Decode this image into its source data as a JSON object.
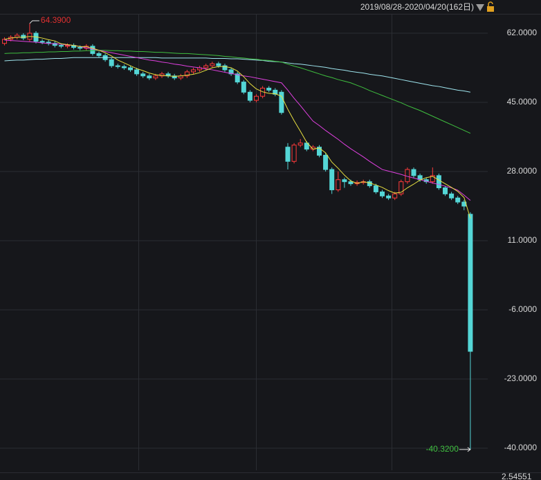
{
  "chart_data": {
    "type": "candlestick",
    "title": "2019/08/28-2020/04/20(162日)",
    "footer_value": "2.54551",
    "high_label": "64.3900",
    "low_label": "-40.3200",
    "up_color": "#ff3b3b",
    "down_color": "#54d6d6",
    "ylim": [
      -45.44,
      66.76
    ],
    "yticks": [
      {
        "value": 62,
        "label": "62.0000"
      },
      {
        "value": 45,
        "label": "45.0000"
      },
      {
        "value": 28,
        "label": "28.0000"
      },
      {
        "value": 11,
        "label": "11.0000"
      },
      {
        "value": -6,
        "label": "-6.0000"
      },
      {
        "value": -23,
        "label": "-23.0000"
      },
      {
        "value": -40,
        "label": "-40.0000"
      }
    ],
    "grid": true,
    "open": [
      59.5,
      60.5,
      61,
      61.5,
      60.5,
      62,
      60,
      59.8,
      59.5,
      59,
      58.8,
      59,
      58.5,
      58.3,
      58.8,
      57,
      56.5,
      55.5,
      54,
      53.8,
      53.5,
      53,
      52,
      51.5,
      51,
      51.5,
      52,
      51.5,
      51,
      51.5,
      52.5,
      53,
      53.5,
      54,
      54.5,
      54,
      53,
      52,
      50,
      47.5,
      45.5,
      46.5,
      48.5,
      48,
      47.5,
      34,
      30.5,
      34.5,
      35,
      33.5,
      34,
      32,
      28.5,
      23.5,
      26,
      25.5,
      25,
      25.3,
      25.5,
      24.5,
      23,
      22,
      21.5,
      22.5,
      25.5,
      28.5,
      27,
      26,
      25.5,
      27,
      24,
      22.5,
      21.5,
      20.5,
      17.5
    ],
    "high": [
      61,
      61.5,
      62,
      62,
      64.39,
      62.5,
      60.5,
      60.3,
      60,
      59.5,
      59.5,
      59.5,
      59,
      59.3,
      59.3,
      57.5,
      57,
      56,
      54.5,
      54.3,
      54,
      53.5,
      52.5,
      52,
      52,
      52.5,
      52.5,
      52,
      52,
      53,
      53.5,
      54,
      54.5,
      55,
      55,
      54.5,
      53.5,
      52.5,
      50.5,
      48,
      47,
      49,
      49,
      48.5,
      48,
      35,
      35,
      36,
      35.5,
      34.5,
      34.5,
      32.5,
      29,
      28,
      26.5,
      26,
      25.8,
      26,
      26,
      25,
      23.5,
      22.5,
      23,
      26,
      29,
      29,
      27.5,
      26.5,
      29,
      27.5,
      24.5,
      23,
      22,
      21,
      18
    ],
    "low": [
      59,
      60,
      60.5,
      60.3,
      60,
      59.5,
      59.3,
      59,
      58.5,
      58.3,
      58.3,
      58,
      57.8,
      57.8,
      56.5,
      56,
      55,
      53.5,
      53.3,
      53,
      52.5,
      51.5,
      51,
      50.5,
      50.5,
      51,
      51,
      50.5,
      50.5,
      51,
      52,
      52.5,
      53,
      53.5,
      53.5,
      52.5,
      51.5,
      49.5,
      47,
      45,
      45,
      46,
      47.5,
      46.5,
      42,
      28.5,
      30,
      34,
      33,
      33,
      31.5,
      28,
      22.5,
      23,
      24,
      24.5,
      24.5,
      24.8,
      24,
      22.5,
      21.5,
      21,
      21,
      22,
      25,
      26.5,
      25.5,
      25,
      25,
      23.5,
      22,
      21,
      20,
      18.5,
      -40.32
    ],
    "close": [
      60.5,
      61,
      61.5,
      60.8,
      62,
      60,
      59.8,
      59.5,
      59,
      58.8,
      59,
      58.5,
      58.3,
      58.8,
      57,
      56.5,
      55.5,
      54,
      53.8,
      53.5,
      53,
      52,
      51.5,
      51,
      51.5,
      52,
      51.5,
      51,
      51.5,
      52.5,
      53,
      53.5,
      54,
      54.5,
      54,
      53,
      52,
      50,
      47.5,
      45.5,
      46.5,
      48.5,
      48,
      47,
      42.5,
      30.5,
      34.5,
      35,
      33.5,
      34,
      32,
      28.5,
      23.5,
      26,
      25.5,
      25,
      25.3,
      25.5,
      24.5,
      23,
      22,
      21.5,
      22.5,
      25.5,
      28.5,
      27,
      26,
      25.5,
      27,
      24,
      22.5,
      21.5,
      20.5,
      19.5,
      -16.2
    ],
    "lines": [
      {
        "color": "#9fe6ef",
        "values": [
          55.2,
          55.3,
          55.4,
          55.4,
          55.5,
          55.6,
          55.6,
          55.7,
          55.8,
          55.8,
          55.9,
          56,
          56,
          56,
          56,
          56,
          56,
          56,
          56,
          56,
          56,
          56,
          56,
          56,
          56,
          55.9,
          55.9,
          55.9,
          55.9,
          55.9,
          55.9,
          55.9,
          55.9,
          55.8,
          55.8,
          55.8,
          55.7,
          55.7,
          55.6,
          55.5,
          55.4,
          55.3,
          55.1,
          55,
          54.9,
          54.7,
          54.5,
          54.4,
          54.2,
          54,
          53.8,
          53.6,
          53.3,
          53.1,
          52.9,
          52.6,
          52.4,
          52.2,
          51.9,
          51.7,
          51.5,
          51.2,
          50.9,
          50.6,
          50.3,
          50,
          49.7,
          49.4,
          49.1,
          48.9,
          48.6,
          48.3,
          48,
          47.8,
          47.5
        ]
      },
      {
        "color": "#3fbf3f",
        "values": [
          57,
          57.1,
          57.1,
          57.2,
          57.2,
          57.3,
          57.3,
          57.4,
          57.4,
          57.5,
          57.5,
          57.6,
          57.6,
          57.7,
          57.7,
          57.8,
          57.8,
          57.7,
          57.7,
          57.6,
          57.6,
          57.5,
          57.5,
          57.4,
          57.3,
          57.3,
          57.2,
          57.1,
          57,
          57,
          56.9,
          56.8,
          56.7,
          56.6,
          56.5,
          56.3,
          56.2,
          56,
          55.9,
          55.7,
          55.6,
          55.4,
          55.3,
          55.1,
          54.9,
          54.4,
          53.9,
          53.5,
          53,
          52.5,
          52,
          51.5,
          51.1,
          50.6,
          50.2,
          49.8,
          49.2,
          48.6,
          47.9,
          47.3,
          46.7,
          46.1,
          45.5,
          44.9,
          44.2,
          43.6,
          43,
          42.3,
          41.6,
          40.9,
          40.2,
          39.5,
          38.8,
          38.1,
          37.4
        ]
      },
      {
        "color": "#e040e0",
        "values": [
          60.3,
          60.2,
          60.1,
          60,
          59.9,
          59.8,
          59.6,
          59.5,
          59.4,
          59.3,
          59.1,
          59,
          58.7,
          58.4,
          58.1,
          57.8,
          57.5,
          57.2,
          56.9,
          56.6,
          56.3,
          56,
          55.7,
          55.4,
          55.2,
          54.9,
          54.7,
          54.4,
          54.2,
          53.9,
          53.7,
          53.5,
          53.2,
          53,
          52.7,
          52.4,
          52.1,
          51.8,
          51.5,
          51.3,
          51,
          50.7,
          50.4,
          50.1,
          49.8,
          48,
          46,
          44.2,
          42.3,
          40.4,
          39.3,
          38.1,
          37,
          35.9,
          34.7,
          33.6,
          32.6,
          31.6,
          30.5,
          29.5,
          28.5,
          28.1,
          27.7,
          27.3,
          26.8,
          26.4,
          26,
          25.6,
          25.2,
          24.8,
          24.4,
          24,
          23.4,
          22.2,
          20.9
        ]
      },
      {
        "color": "#e8e040",
        "values": [
          60.5,
          60.8,
          61,
          61,
          61.2,
          61.1,
          60.8,
          60.4,
          60.1,
          59.4,
          59.2,
          59,
          58.7,
          58.7,
          58.3,
          57.8,
          57.2,
          56.4,
          55.4,
          54.7,
          54,
          53.3,
          52.8,
          52.2,
          51.8,
          51.6,
          51.5,
          51.4,
          51.5,
          51.7,
          51.9,
          52.3,
          52.9,
          53.5,
          53.8,
          53.8,
          53.5,
          52.7,
          51.3,
          49.6,
          48.3,
          47.6,
          47.2,
          47.1,
          46.5,
          43.3,
          40.5,
          37.9,
          35.2,
          33.5,
          33.8,
          32.6,
          30.3,
          28.8,
          27.1,
          25.7,
          25.1,
          25.5,
          25.2,
          24.7,
          24.1,
          23.3,
          22.7,
          22.9,
          24,
          24.9,
          25.9,
          26.5,
          26.8,
          25.9,
          25,
          24.1,
          23.1,
          21.6,
          16.5
        ]
      }
    ]
  }
}
